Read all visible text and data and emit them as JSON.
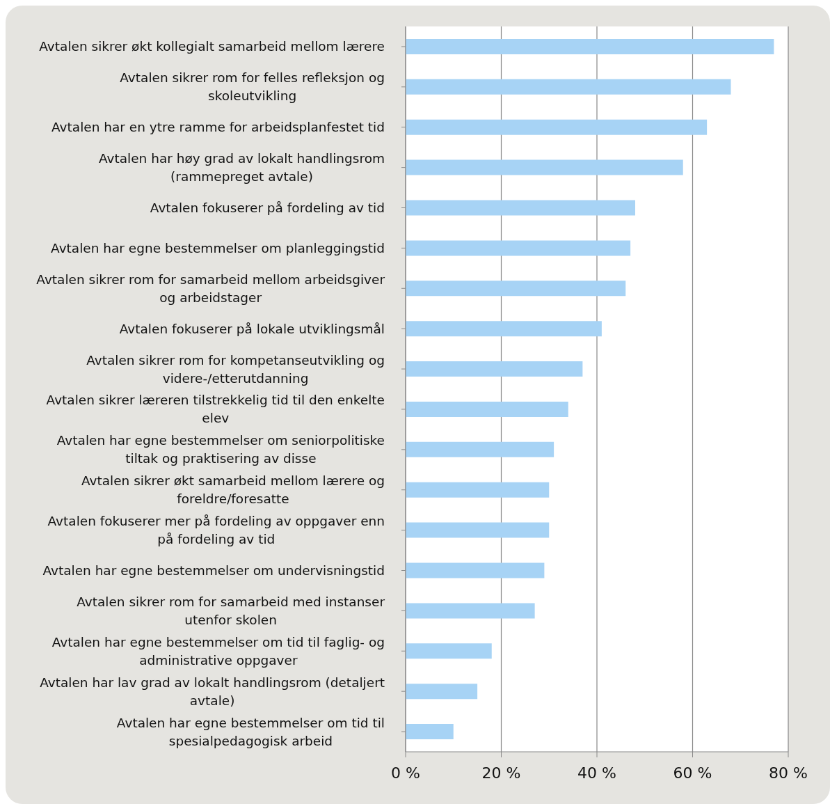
{
  "chart_data": {
    "type": "bar",
    "orientation": "horizontal",
    "categories": [
      "Avtalen sikrer økt kollegialt samarbeid mellom lærere",
      "Avtalen sikrer rom for felles refleksjon og skoleutvikling",
      "Avtalen har en ytre ramme for arbeidsplanfestet tid",
      "Avtalen har høy grad av lokalt handlingsrom (rammepreget avtale)",
      "Avtalen fokuserer på fordeling av tid",
      "Avtalen har egne bestemmelser om planleggingstid",
      "Avtalen sikrer rom for samarbeid mellom arbeidsgiver og arbeidstager",
      "Avtalen fokuserer på lokale utviklingsmål",
      "Avtalen sikrer rom for kompetanseutvikling og videre-/etterutdanning",
      "Avtalen sikrer læreren tilstrekkelig tid til den enkelte elev",
      "Avtalen har egne bestemmelser om seniorpolitiske tiltak og praktisering av disse",
      "Avtalen sikrer økt samarbeid mellom lærere og foreldre/foresatte",
      "Avtalen fokuserer mer på fordeling av oppgaver enn på fordeling av tid",
      "Avtalen har egne bestemmelser om undervisningstid",
      "Avtalen sikrer rom for samarbeid med instanser utenfor skolen",
      "Avtalen har egne bestemmelser om tid til faglig- og administrative oppgaver",
      "Avtalen har lav grad av lokalt handlingsrom (detaljert avtale)",
      "Avtalen har egne bestemmelser om tid til spesialpedagogisk arbeid"
    ],
    "values": [
      77,
      68,
      63,
      58,
      48,
      47,
      46,
      41,
      37,
      34,
      31,
      30,
      30,
      29,
      27,
      18,
      15,
      10
    ],
    "color": "#a7d3f5",
    "xlim": [
      0,
      80
    ],
    "xticks": [
      {
        "value": 0,
        "label": "0 %"
      },
      {
        "value": 20,
        "label": "20 %"
      },
      {
        "value": 40,
        "label": "40 %"
      },
      {
        "value": 60,
        "label": "60 %"
      },
      {
        "value": 80,
        "label": "80 %"
      }
    ],
    "grid": "x"
  }
}
